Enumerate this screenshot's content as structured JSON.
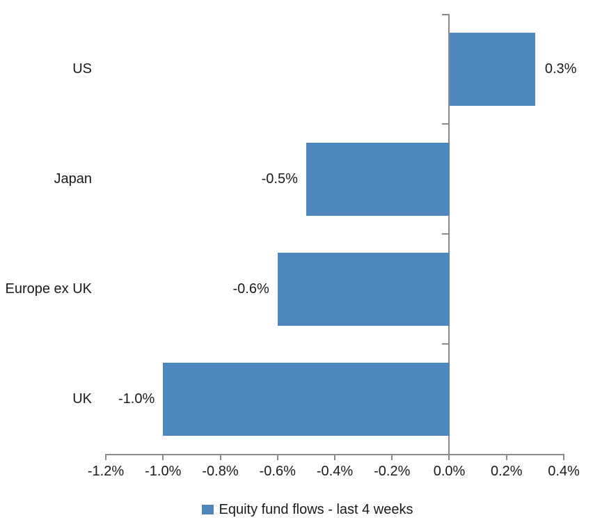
{
  "chart_data": {
    "type": "bar",
    "orientation": "horizontal",
    "title": "",
    "categories": [
      "US",
      "Japan",
      "Europe ex UK",
      "UK"
    ],
    "values": [
      0.3,
      -0.5,
      -0.6,
      -1.0
    ],
    "value_labels": [
      "0.3%",
      "-0.5%",
      "-0.6%",
      "-1.0%"
    ],
    "x_ticks": [
      -1.2,
      -1.0,
      -0.8,
      -0.6,
      -0.4,
      -0.2,
      0.0,
      0.2,
      0.4
    ],
    "x_tick_labels": [
      "-1.2%",
      "-1.0%",
      "-0.8%",
      "-0.6%",
      "-0.4%",
      "-0.2%",
      "0.0%",
      "0.2%",
      "0.4%"
    ],
    "xlim": [
      -1.2,
      0.4
    ],
    "grid": false,
    "legend_position": "bottom",
    "legend": [
      "Equity fund flows - last 4 weeks"
    ],
    "colors": {
      "bar": "#4E87BE",
      "axis": "#8A8A8A",
      "text": "#1A1A1A",
      "background": "#FFFFFF"
    }
  }
}
